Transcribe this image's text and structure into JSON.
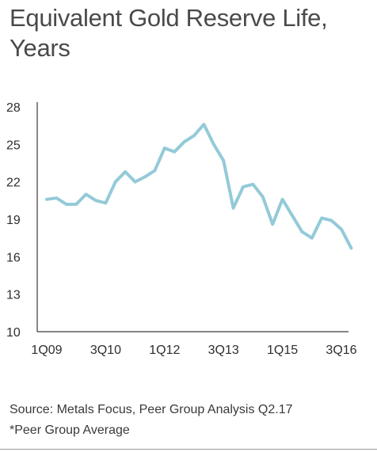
{
  "chart_data": {
    "type": "line",
    "title": "Equivalent Gold Reserve Life, Years",
    "xlabel": "",
    "ylabel": "",
    "ylim": [
      10,
      28
    ],
    "y_ticks": [
      10,
      13,
      16,
      19,
      22,
      25,
      28
    ],
    "x_tick_labels": [
      {
        "label": "1Q09",
        "index": 0
      },
      {
        "label": "3Q10",
        "index": 6
      },
      {
        "label": "1Q12",
        "index": 12
      },
      {
        "label": "3Q13",
        "index": 18
      },
      {
        "label": "1Q15",
        "index": 24
      },
      {
        "label": "3Q16",
        "index": 30
      }
    ],
    "line_color": "#93cad8",
    "series": [
      {
        "name": "",
        "values": [
          20.6,
          20.7,
          20.2,
          20.2,
          21.0,
          20.5,
          20.3,
          22.0,
          22.8,
          22.0,
          22.4,
          22.9,
          24.7,
          24.4,
          25.2,
          25.7,
          26.6,
          25.0,
          23.7,
          19.9,
          21.6,
          21.8,
          20.8,
          18.6,
          20.6,
          19.3,
          18.0,
          17.5,
          19.1,
          18.9,
          18.2,
          16.7
        ]
      }
    ]
  },
  "footer": {
    "source": "Source: Metals Focus, Peer Group Analysis Q2.17",
    "note": "*Peer Group Average"
  }
}
